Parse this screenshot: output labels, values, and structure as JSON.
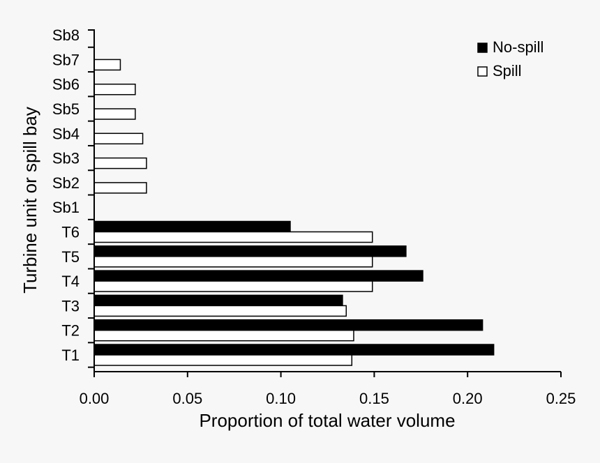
{
  "chart_data": {
    "type": "bar",
    "orientation": "horizontal",
    "categories": [
      "T1",
      "T2",
      "T3",
      "T4",
      "T5",
      "T6",
      "Sb1",
      "Sb2",
      "Sb3",
      "Sb4",
      "Sb5",
      "Sb6",
      "Sb7",
      "Sb8"
    ],
    "series": [
      {
        "name": "No-spill",
        "color": "#000000",
        "values": [
          0.214,
          0.208,
          0.133,
          0.176,
          0.167,
          0.105,
          0,
          0,
          0,
          0,
          0,
          0,
          0,
          0
        ]
      },
      {
        "name": "Spill",
        "color": "#ffffff",
        "values": [
          0.138,
          0.139,
          0.135,
          0.149,
          0.149,
          0.149,
          0,
          0.028,
          0.028,
          0.026,
          0.022,
          0.022,
          0.014,
          0
        ]
      }
    ],
    "xlabel": "Proportion of total water volume",
    "ylabel": "Turbine unit or spill bay",
    "xlim": [
      0,
      0.25
    ],
    "xticks": [
      "0.00",
      "0.05",
      "0.10",
      "0.15",
      "0.20",
      "0.25"
    ],
    "legend_placement": "top-right",
    "grid": false
  }
}
